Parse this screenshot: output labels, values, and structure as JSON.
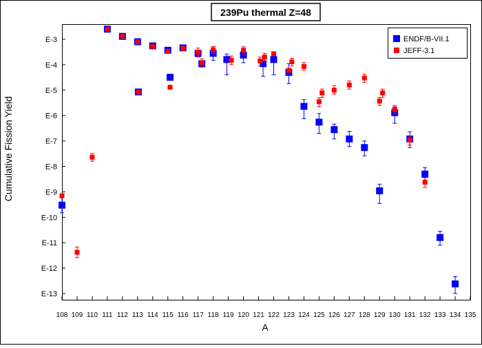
{
  "chart_data": {
    "type": "scatter",
    "title": "239Pu thermal Z=48",
    "xlabel": "A",
    "ylabel": "Cumulative Fission Yield",
    "log_y": true,
    "xlim": [
      108,
      135
    ],
    "ylim": [
      1e-13,
      0.003
    ],
    "grid": false,
    "legend_position": "top-right",
    "x_ticks": [
      "108",
      "109",
      "110",
      "111",
      "112",
      "113",
      "114",
      "115",
      "116",
      "117",
      "118",
      "119",
      "120",
      "121",
      "122",
      "123",
      "124",
      "125",
      "126",
      "127",
      "128",
      "129",
      "130",
      "131",
      "132",
      "133",
      "134",
      "135"
    ],
    "y_ticks": [
      {
        "label": "E-3",
        "value": 0.001
      },
      {
        "label": "E-4",
        "value": 0.0001
      },
      {
        "label": "E-5",
        "value": 1e-05
      },
      {
        "label": "E-6",
        "value": 1e-06
      },
      {
        "label": "E-7",
        "value": 1e-07
      },
      {
        "label": "E-8",
        "value": 1e-08
      },
      {
        "label": "E-9",
        "value": 1e-09
      },
      {
        "label": "E-10",
        "value": 1e-10
      },
      {
        "label": "E-11",
        "value": 1e-11
      },
      {
        "label": "E-12",
        "value": 1e-12
      },
      {
        "label": "E-13",
        "value": 1e-13
      }
    ],
    "series": [
      {
        "name": "ENDF/B-VII.1",
        "color": "#0000ff",
        "marker": "square",
        "points": [
          {
            "x": 108,
            "y": 3e-10,
            "err": [
              1.5e-10,
              6e-10
            ]
          },
          {
            "x": 111,
            "y": 0.0025
          },
          {
            "x": 112,
            "y": 0.0013
          },
          {
            "x": 113,
            "y": 0.0008
          },
          {
            "x": 113.05,
            "y": 8.5e-06
          },
          {
            "x": 114,
            "y": 0.00055
          },
          {
            "x": 115,
            "y": 0.00037
          },
          {
            "x": 115.15,
            "y": 3.2e-05
          },
          {
            "x": 116,
            "y": 0.00046
          },
          {
            "x": 117,
            "y": 0.00028
          },
          {
            "x": 117.25,
            "y": 0.00011
          },
          {
            "x": 118,
            "y": 0.00028,
            "err": [
              0.00015,
              0.00045
            ]
          },
          {
            "x": 118.9,
            "y": 0.00016,
            "err": [
              4e-05,
              0.00026
            ]
          },
          {
            "x": 120,
            "y": 0.00024,
            "err": [
              0.00012,
              0.00036
            ]
          },
          {
            "x": 121.3,
            "y": 0.00011,
            "err": [
              3.5e-05,
              0.0002
            ]
          },
          {
            "x": 122,
            "y": 0.00016,
            "err": [
              4e-05,
              0.00026
            ]
          },
          {
            "x": 123,
            "y": 5e-05,
            "err": [
              1.8e-05,
              0.00011
            ]
          },
          {
            "x": 124,
            "y": 2.3e-06,
            "err": [
              7.5e-07,
              4.2e-06
            ]
          },
          {
            "x": 125,
            "y": 5.5e-07,
            "err": [
              2e-07,
              1.2e-06
            ]
          },
          {
            "x": 126,
            "y": 2.8e-07,
            "err": [
              1.2e-07,
              4.6e-07
            ]
          },
          {
            "x": 127,
            "y": 1.2e-07,
            "err": [
              6e-08,
              2.4e-07
            ]
          },
          {
            "x": 128,
            "y": 5.5e-08,
            "err": [
              2.6e-08,
              1e-07
            ]
          },
          {
            "x": 129,
            "y": 1.1e-09,
            "err": [
              3.5e-10,
              2e-09
            ]
          },
          {
            "x": 130,
            "y": 1.3e-06,
            "err": [
              5e-07,
              2.2e-06
            ]
          },
          {
            "x": 131,
            "y": 1.2e-07,
            "err": [
              5.5e-08,
              2.3e-07
            ]
          },
          {
            "x": 132,
            "y": 5e-09,
            "err": [
              2.5e-09,
              9e-09
            ]
          },
          {
            "x": 133,
            "y": 1.6e-11,
            "err": [
              8e-12,
              2.8e-11
            ]
          },
          {
            "x": 134,
            "y": 2.4e-13,
            "err": [
              1e-13,
              4.6e-13
            ]
          }
        ]
      },
      {
        "name": "JEFF-3.1",
        "color": "#ff0000",
        "marker": "square",
        "points": [
          {
            "x": 108,
            "y": 7e-10
          },
          {
            "x": 109,
            "y": 4.2e-12,
            "err": [
              2.6e-12,
              6.8e-12
            ]
          },
          {
            "x": 110,
            "y": 2.3e-08,
            "err": [
              1.6e-08,
              3.2e-08
            ]
          },
          {
            "x": 111,
            "y": 0.0025
          },
          {
            "x": 112,
            "y": 0.0013
          },
          {
            "x": 113,
            "y": 0.0008
          },
          {
            "x": 113.05,
            "y": 8.5e-06
          },
          {
            "x": 114,
            "y": 0.00052
          },
          {
            "x": 115,
            "y": 0.00034
          },
          {
            "x": 115.15,
            "y": 1.3e-05
          },
          {
            "x": 116,
            "y": 0.00044
          },
          {
            "x": 117,
            "y": 0.00031,
            "err": [
              0.0002,
              0.00045
            ]
          },
          {
            "x": 117.25,
            "y": 0.00012,
            "err": [
              8e-05,
              0.00017
            ]
          },
          {
            "x": 118,
            "y": 0.00039,
            "err": [
              0.00028,
              0.00052
            ]
          },
          {
            "x": 119.2,
            "y": 0.00015,
            "err": [
              0.0001,
              0.00022
            ]
          },
          {
            "x": 120,
            "y": 0.00037,
            "err": [
              0.00026,
              0.00051
            ]
          },
          {
            "x": 121.1,
            "y": 0.00014,
            "err": [
              9e-05,
              0.0002
            ]
          },
          {
            "x": 121.4,
            "y": 0.0002,
            "err": [
              0.00014,
              0.00028
            ]
          },
          {
            "x": 122,
            "y": 0.00027
          },
          {
            "x": 123,
            "y": 6e-05
          },
          {
            "x": 123.2,
            "y": 0.00013,
            "err": [
              9e-05,
              0.00018
            ]
          },
          {
            "x": 124,
            "y": 8.5e-05,
            "err": [
              6e-05,
              0.00012
            ]
          },
          {
            "x": 125,
            "y": 3.5e-06,
            "err": [
              2.2e-06,
              5e-06
            ]
          },
          {
            "x": 125.2,
            "y": 7.8e-06,
            "err": [
              5.2e-06,
              1.1e-05
            ]
          },
          {
            "x": 126,
            "y": 1e-05,
            "err": [
              7e-06,
              1.5e-05
            ]
          },
          {
            "x": 127,
            "y": 1.6e-05,
            "err": [
              1.1e-05,
              2.3e-05
            ]
          },
          {
            "x": 128,
            "y": 3e-05,
            "err": [
              2e-05,
              4.2e-05
            ]
          },
          {
            "x": 129,
            "y": 3.7e-06,
            "err": [
              2.5e-06,
              5.2e-06
            ]
          },
          {
            "x": 129.2,
            "y": 7.8e-06,
            "err": [
              5.2e-06,
              1.1e-05
            ]
          },
          {
            "x": 130,
            "y": 1.7e-06,
            "err": [
              1.2e-06,
              2.5e-06
            ]
          },
          {
            "x": 131,
            "y": 1.1e-07,
            "err": [
              7e-08,
              1.6e-07
            ]
          },
          {
            "x": 132,
            "y": 2.4e-09,
            "err": [
              1.5e-09,
              3.6e-09
            ]
          }
        ]
      }
    ]
  }
}
